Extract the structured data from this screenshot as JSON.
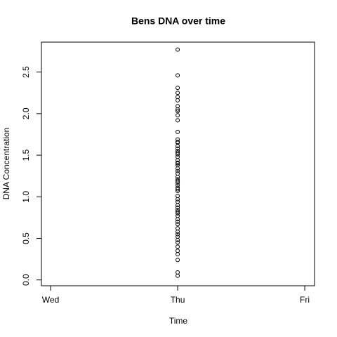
{
  "chart_data": {
    "type": "scatter",
    "title": "Bens DNA over time",
    "x_label": "Time",
    "y_label": "DNA Concentration",
    "xlim": [
      -0.072,
      2.077
    ],
    "xticks": [
      {
        "value": 0,
        "label": "Wed"
      },
      {
        "value": 1,
        "label": "Thu"
      },
      {
        "value": 2,
        "label": "Fri"
      }
    ],
    "ylim": [
      -0.07,
      2.86
    ],
    "yticks": [
      {
        "value": 0,
        "label": "0.0"
      },
      0.5,
      {
        "value": 1,
        "label": "1.0"
      },
      1.5,
      {
        "value": 2,
        "label": "2.0"
      },
      2.5
    ],
    "color": "#000000",
    "x": [
      1,
      1,
      1,
      1,
      1,
      1,
      1,
      1,
      1,
      1,
      1,
      1,
      1,
      1,
      1,
      1,
      1,
      1,
      1,
      1,
      1,
      1,
      1,
      1,
      1,
      1,
      1,
      1,
      1,
      1,
      1,
      1,
      1,
      1,
      1,
      1,
      1,
      1,
      1,
      1,
      1,
      1,
      1,
      1,
      1,
      1,
      1,
      1,
      1,
      1,
      1,
      1,
      1,
      1,
      1,
      1,
      1,
      1,
      1,
      1
    ],
    "values": [
      2.77,
      2.46,
      2.31,
      2.25,
      2.2,
      2.16,
      2.09,
      2.05,
      2.03,
      1.98,
      1.92,
      1.78,
      1.69,
      1.66,
      1.65,
      1.61,
      1.58,
      1.55,
      1.53,
      1.51,
      1.48,
      1.44,
      1.41,
      1.4,
      1.38,
      1.34,
      1.31,
      1.28,
      1.24,
      1.21,
      1.19,
      1.17,
      1.14,
      1.11,
      1.09,
      1.07,
      1.01,
      0.97,
      0.94,
      0.9,
      0.87,
      0.84,
      0.82,
      0.8,
      0.77,
      0.73,
      0.7,
      0.67,
      0.62,
      0.58,
      0.55,
      0.52,
      0.48,
      0.45,
      0.4,
      0.35,
      0.31,
      0.24,
      0.09,
      0.05
    ]
  }
}
